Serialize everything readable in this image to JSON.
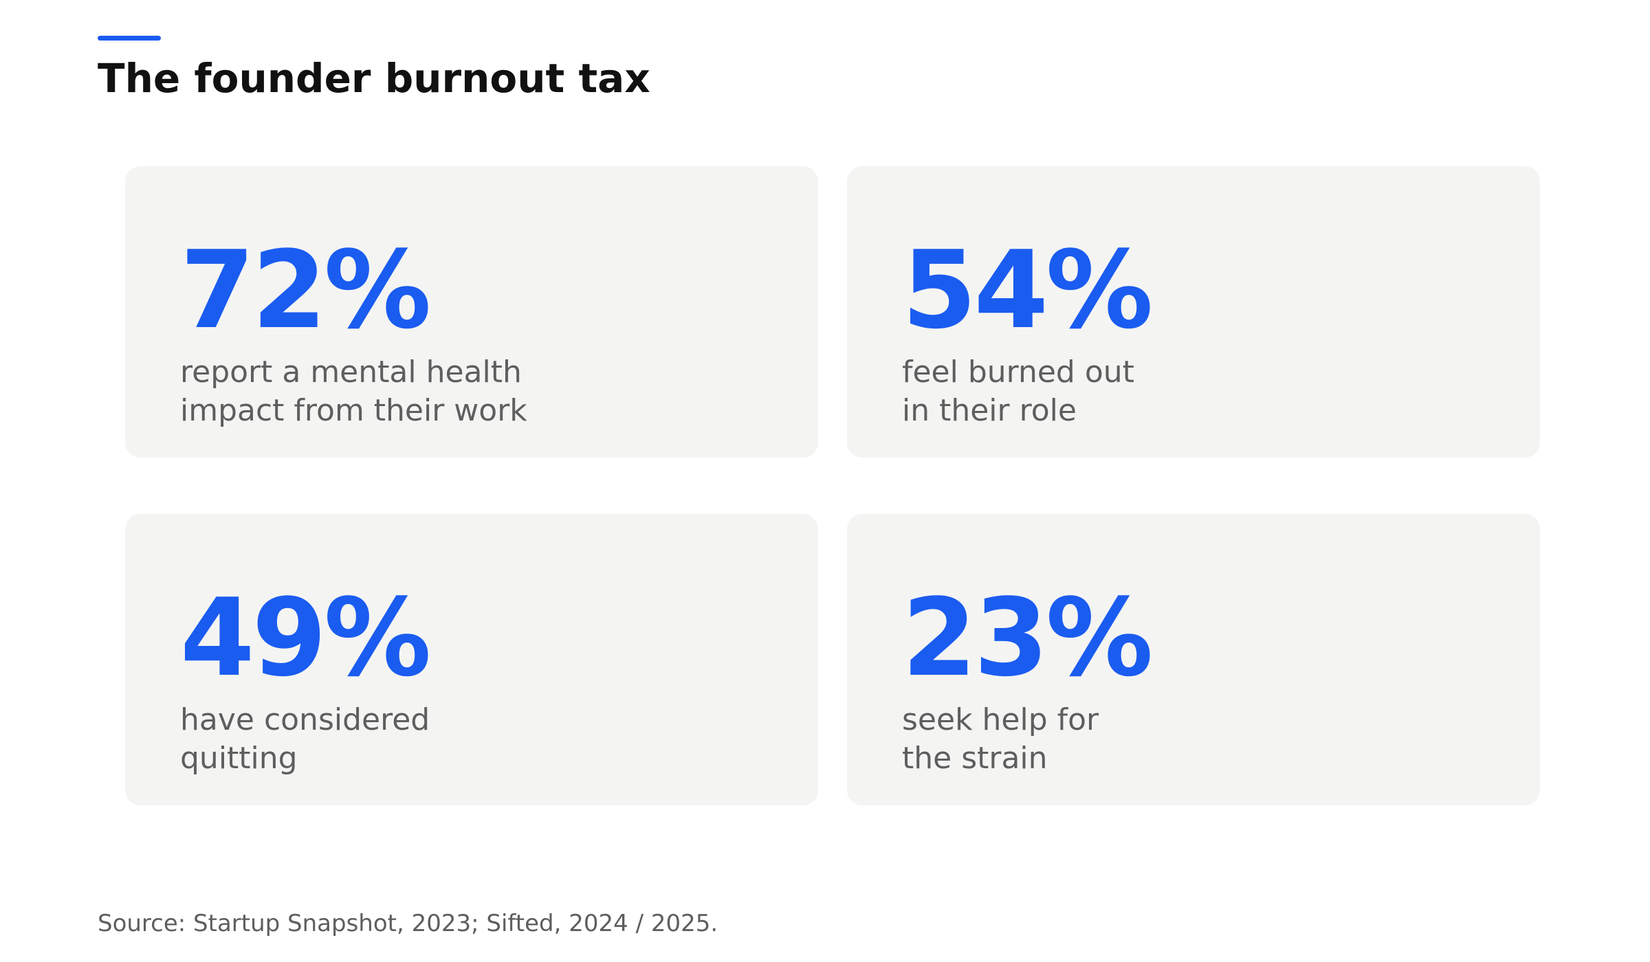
{
  "header": {
    "title": "The founder burnout tax",
    "accent_color": "#1a5cf0"
  },
  "stats": [
    {
      "value": "72%",
      "desc_line1": "report a mental health",
      "desc_line2": "impact from their work"
    },
    {
      "value": "54%",
      "desc_line1": "feel burned out",
      "desc_line2": "in their role"
    },
    {
      "value": "49%",
      "desc_line1": "have considered",
      "desc_line2": "quitting"
    },
    {
      "value": "23%",
      "desc_line1": "seek help for",
      "desc_line2": "the strain"
    }
  ],
  "footer": {
    "source": "Source: Startup Snapshot, 2023; Sifted, 2024 / 2025."
  }
}
